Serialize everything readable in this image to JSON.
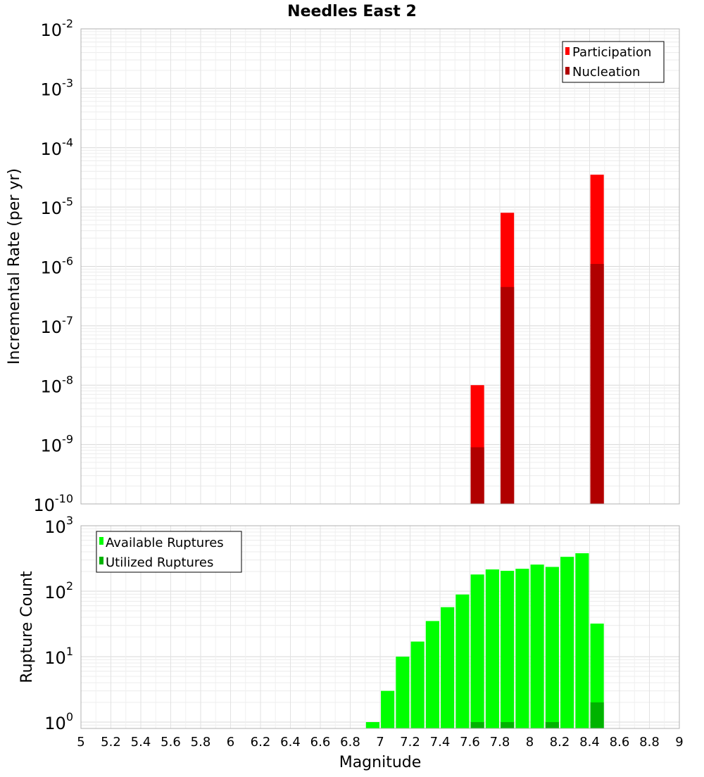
{
  "chart_data": [
    {
      "type": "bar",
      "title": "Needles East 2",
      "xlabel": "Magnitude",
      "ylabel": "Incremental Rate (per yr)",
      "yscale": "log",
      "xlim": [
        5,
        9
      ],
      "ylim": [
        1e-10,
        0.01
      ],
      "bar_width": 0.09,
      "legend": {
        "position": "top-right",
        "entries": [
          "Participation",
          "Nucleation"
        ]
      },
      "series": [
        {
          "name": "Participation",
          "color": "#ff0000",
          "x": [
            7.65,
            7.85,
            8.45
          ],
          "values": [
            1e-08,
            8e-06,
            3.5e-05
          ]
        },
        {
          "name": "Nucleation",
          "color": "#b00000",
          "x": [
            7.65,
            7.85,
            8.45
          ],
          "values": [
            9e-10,
            4.5e-07,
            1.1e-06
          ]
        }
      ],
      "y_ticks": [
        {
          "base": "10",
          "exp": "-2"
        },
        {
          "base": "10",
          "exp": "-3"
        },
        {
          "base": "10",
          "exp": "-4"
        },
        {
          "base": "10",
          "exp": "-5"
        },
        {
          "base": "10",
          "exp": "-6"
        },
        {
          "base": "10",
          "exp": "-7"
        },
        {
          "base": "10",
          "exp": "-8"
        },
        {
          "base": "10",
          "exp": "-9"
        },
        {
          "base": "10",
          "exp": "-10"
        }
      ]
    },
    {
      "type": "bar",
      "title": "",
      "xlabel": "Magnitude",
      "ylabel": "Rupture Count",
      "yscale": "log",
      "xlim": [
        5,
        9
      ],
      "ylim": [
        0.8,
        1000
      ],
      "bar_width": 0.09,
      "legend": {
        "position": "top-left",
        "entries": [
          "Available Ruptures",
          "Utilized Ruptures"
        ]
      },
      "series": [
        {
          "name": "Available Ruptures",
          "color": "#00ff00",
          "x": [
            6.95,
            7.05,
            7.15,
            7.25,
            7.35,
            7.45,
            7.55,
            7.65,
            7.75,
            7.85,
            7.95,
            8.05,
            8.15,
            8.25,
            8.35,
            8.45
          ],
          "values": [
            1,
            3,
            10,
            17,
            35,
            57,
            89,
            180,
            215,
            205,
            220,
            255,
            235,
            335,
            380,
            32
          ]
        },
        {
          "name": "Utilized Ruptures",
          "color": "#00b300",
          "x": [
            7.65,
            7.85,
            8.15,
            8.45
          ],
          "values": [
            1,
            1,
            1,
            2
          ]
        }
      ],
      "y_ticks": [
        {
          "base": "10",
          "exp": "3"
        },
        {
          "base": "10",
          "exp": "2"
        },
        {
          "base": "10",
          "exp": "1"
        },
        {
          "base": "10",
          "exp": "0"
        }
      ]
    }
  ],
  "x_tick_labels": [
    "5",
    "5.2",
    "5.4",
    "5.6",
    "5.8",
    "6",
    "6.2",
    "6.4",
    "6.6",
    "6.8",
    "7",
    "7.2",
    "7.4",
    "7.6",
    "7.8",
    "8",
    "8.2",
    "8.4",
    "8.6",
    "8.8",
    "9"
  ],
  "x_tick_values": [
    5,
    5.2,
    5.4,
    5.6,
    5.8,
    6,
    6.2,
    6.4,
    6.6,
    6.8,
    7,
    7.2,
    7.4,
    7.6,
    7.8,
    8,
    8.2,
    8.4,
    8.6,
    8.8,
    9
  ]
}
